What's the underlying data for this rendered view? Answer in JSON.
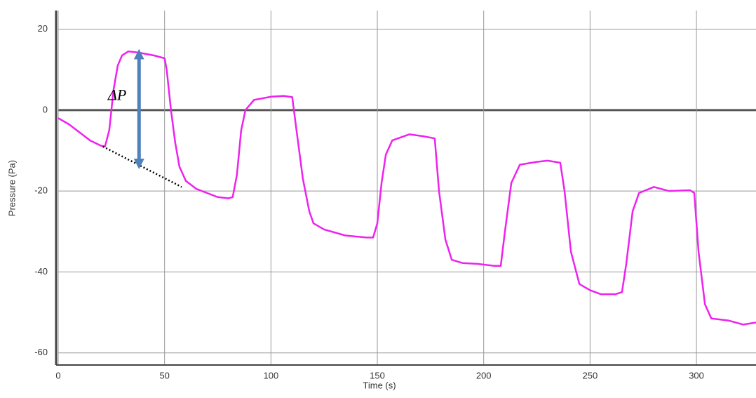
{
  "chart_data": {
    "type": "line",
    "x_label": "Time (s)",
    "y_label": "Pressure (Pa)",
    "color": "#ee22ee",
    "xlim": [
      0,
      328
    ],
    "ylim": [
      -63,
      24.6
    ],
    "xticks": [
      0,
      50,
      100,
      150,
      200,
      250,
      300
    ],
    "yticks": [
      -60,
      -40,
      -20,
      0,
      20
    ],
    "grid": true,
    "x": [
      0,
      5,
      10,
      15,
      20,
      22,
      24,
      26,
      28,
      30,
      33,
      38,
      45,
      50,
      51,
      53,
      55,
      57,
      60,
      65,
      70,
      75,
      80,
      82,
      84,
      86,
      88,
      92,
      100,
      106,
      110,
      112,
      115,
      118,
      120,
      125,
      135,
      145,
      148,
      150,
      152,
      154,
      157,
      165,
      172,
      177,
      179,
      182,
      185,
      190,
      197,
      205,
      208,
      210,
      213,
      217,
      225,
      230,
      236,
      238,
      241,
      245,
      250,
      255,
      262,
      265,
      267,
      270,
      273,
      280,
      287,
      297,
      299,
      301,
      304,
      307,
      315,
      322,
      328
    ],
    "values": [
      -2,
      -3.5,
      -5.5,
      -7.5,
      -8.8,
      -9,
      -5,
      5,
      11,
      13.5,
      14.5,
      14.2,
      13.5,
      12.8,
      10,
      0,
      -8,
      -14,
      -17.5,
      -19.5,
      -20.5,
      -21.5,
      -21.8,
      -21.5,
      -16,
      -5,
      0,
      2.5,
      3.3,
      3.5,
      3.2,
      -5,
      -17,
      -25,
      -28,
      -29.5,
      -31,
      -31.5,
      -31.5,
      -28,
      -18,
      -11,
      -7.5,
      -6,
      -6.5,
      -7,
      -20,
      -32,
      -37,
      -37.8,
      -38,
      -38.5,
      -38.5,
      -30,
      -18,
      -13.5,
      -12.8,
      -12.5,
      -13,
      -20,
      -35,
      -43,
      -44.5,
      -45.5,
      -45.5,
      -45,
      -38,
      -25,
      -20.5,
      -19,
      -20,
      -19.8,
      -20.5,
      -35,
      -48,
      -51.5,
      -52,
      -53,
      -52.5
    ],
    "annotation": {
      "text": "ΔP",
      "x": 38,
      "y1": 14.5,
      "y2": -14
    },
    "baseline": {
      "x": [
        21,
        58
      ],
      "y": [
        -9,
        -19
      ]
    }
  }
}
